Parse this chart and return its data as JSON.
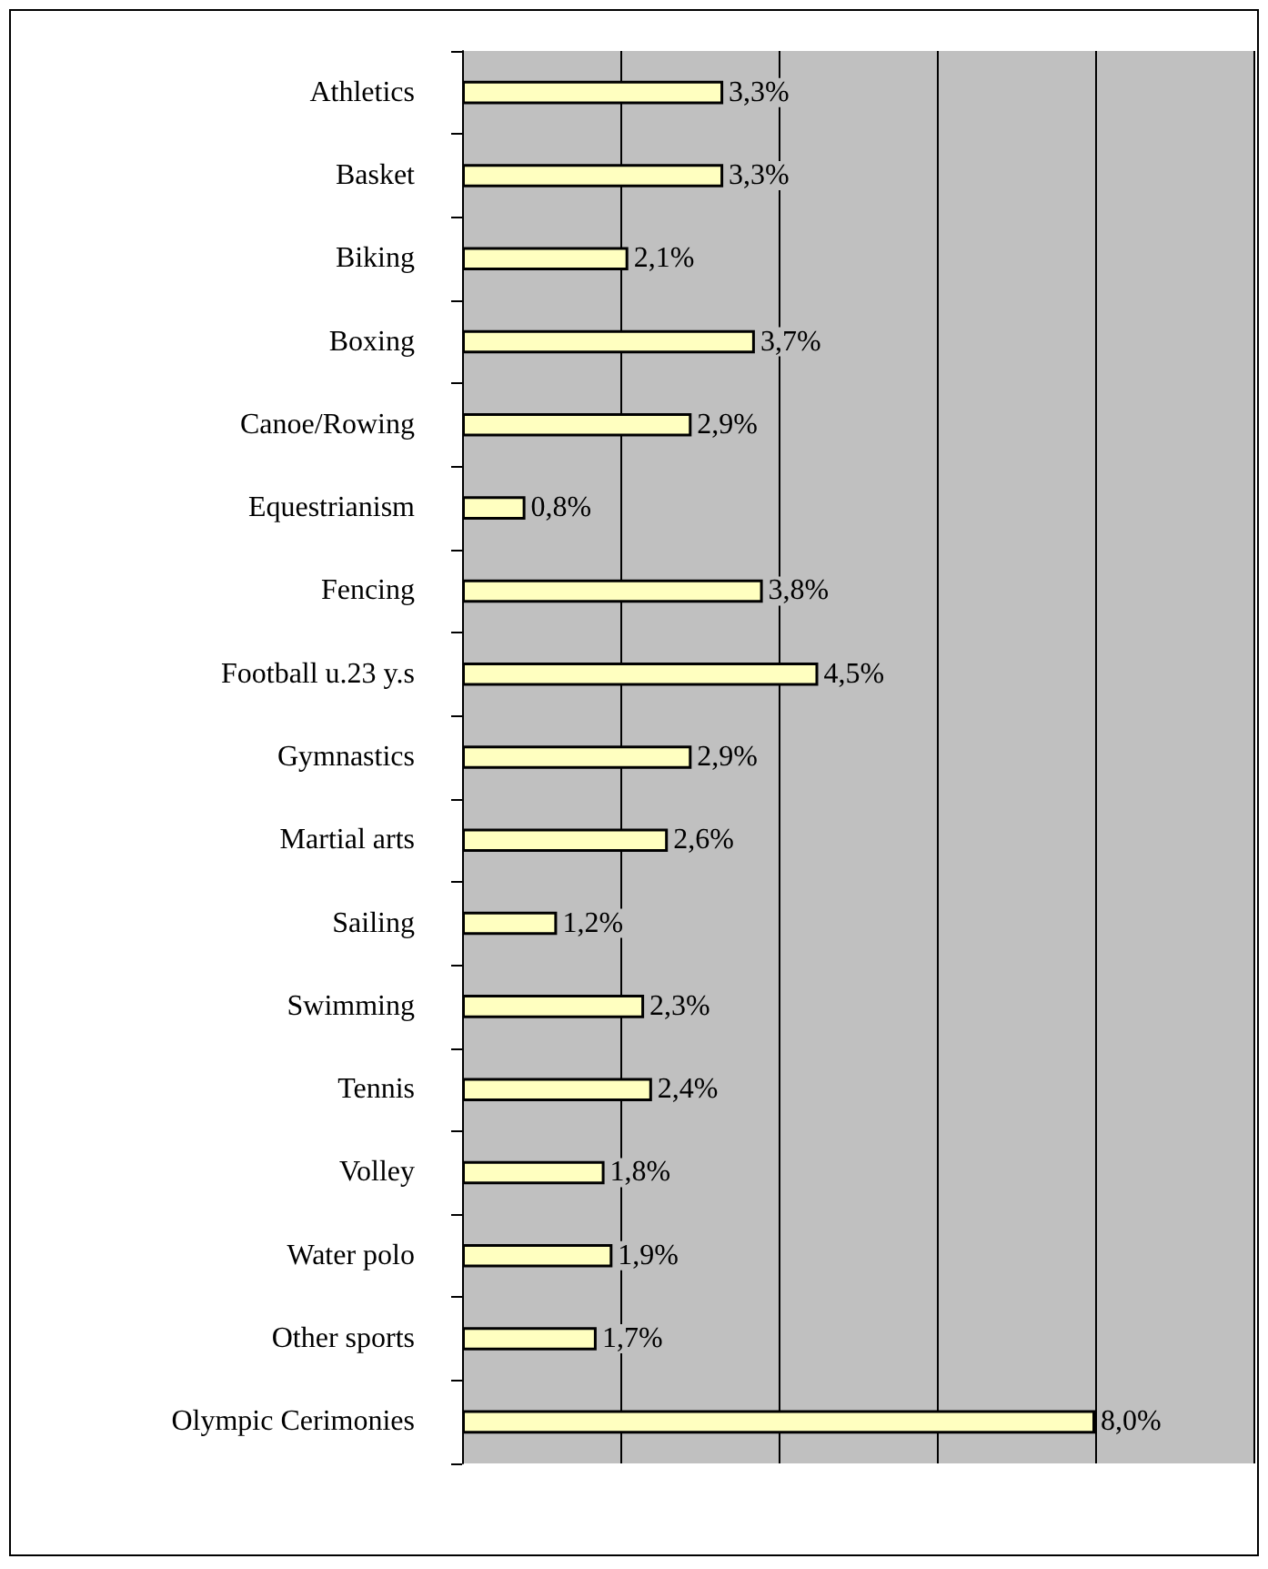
{
  "chart_data": {
    "type": "bar",
    "orientation": "horizontal",
    "categories": [
      "Athletics",
      "Basket",
      "Biking",
      "Boxing",
      "Canoe/Rowing",
      "Equestrianism",
      "Fencing",
      "Football u.23 y.s",
      "Gymnastics",
      "Martial arts",
      "Sailing",
      "Swimming",
      "Tennis",
      "Volley",
      "Water polo",
      "Other sports",
      "Olympic Cerimonies"
    ],
    "values": [
      3.3,
      3.3,
      2.1,
      3.7,
      2.9,
      0.8,
      3.8,
      4.5,
      2.9,
      2.6,
      1.2,
      2.3,
      2.4,
      1.8,
      1.9,
      1.7,
      8.0
    ],
    "value_labels": [
      "3,3%",
      "3,3%",
      "2,1%",
      "3,7%",
      "2,9%",
      "0,8%",
      "3,8%",
      "4,5%",
      "2,9%",
      "2,6%",
      "1,2%",
      "2,3%",
      "2,4%",
      "1,8%",
      "1,9%",
      "1,7%",
      "8,0%"
    ],
    "color": "#ffffc0",
    "xlim": [
      0,
      10
    ],
    "tick_labels": "y",
    "grid": "x"
  }
}
